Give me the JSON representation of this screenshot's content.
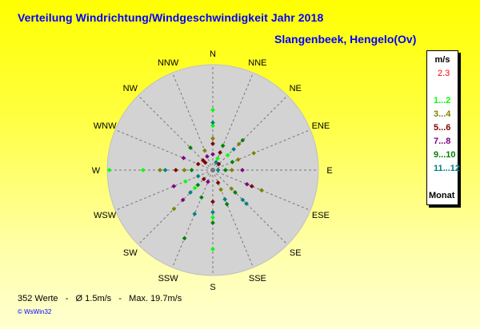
{
  "header": {
    "title": "Verteilung Windrichtung/Windgeschwindigkeit  Jahr 2018",
    "station": "Slangenbeek, Hengelo(Ov)"
  },
  "legend": {
    "unit": "m/s",
    "calm": {
      "label": "2.3",
      "color": "#ff0000"
    },
    "classes": [
      {
        "label": "1...2",
        "color": "#00ff00"
      },
      {
        "label": "3...4",
        "color": "#808000"
      },
      {
        "label": "5...6",
        "color": "#800000"
      },
      {
        "label": "7...8",
        "color": "#800080"
      },
      {
        "label": "9...10",
        "color": "#008000"
      },
      {
        "label": "11...12",
        "color": "#008080"
      }
    ],
    "footer": "Monat"
  },
  "footer": {
    "stats": "352 Werte   -   Ø 1.5m/s   -   Max. 19.7m/s",
    "credit": "© WsWin32"
  },
  "chart_data": {
    "type": "scatter",
    "subtype": "wind-rose",
    "title": "Verteilung Windrichtung/Windgeschwindigkeit  Jahr 2018",
    "directions": [
      "N",
      "NNE",
      "NE",
      "ENE",
      "E",
      "ESE",
      "SE",
      "SSE",
      "S",
      "SSW",
      "SW",
      "WSW",
      "W",
      "WNW",
      "NW",
      "NNW"
    ],
    "grid": true,
    "calm_percent": 2.3,
    "series": [
      {
        "name": "1...2",
        "color": "#00ff00",
        "points": [
          {
            "dir": "N",
            "r": 0.57
          },
          {
            "dir": "N",
            "r": 0.42
          },
          {
            "dir": "S",
            "r": 0.75
          },
          {
            "dir": "S",
            "r": 0.45
          },
          {
            "dir": "W",
            "r": 0.98
          },
          {
            "dir": "W",
            "r": 0.66
          },
          {
            "dir": "WSW",
            "r": 0.28
          },
          {
            "dir": "SW",
            "r": 0.24
          },
          {
            "dir": "NE",
            "r": 0.2
          },
          {
            "dir": "NNE",
            "r": 0.12
          }
        ]
      },
      {
        "name": "3...4",
        "color": "#808000",
        "points": [
          {
            "dir": "ENE",
            "r": 0.42
          },
          {
            "dir": "ENE",
            "r": 0.26
          },
          {
            "dir": "NE",
            "r": 0.35
          },
          {
            "dir": "E",
            "r": 0.18
          },
          {
            "dir": "N",
            "r": 0.3
          },
          {
            "dir": "W",
            "r": 0.5
          },
          {
            "dir": "W",
            "r": 0.27
          },
          {
            "dir": "SW",
            "r": 0.52
          },
          {
            "dir": "SE",
            "r": 0.25
          },
          {
            "dir": "SSE",
            "r": 0.2
          },
          {
            "dir": "ESE",
            "r": 0.5
          },
          {
            "dir": "NNW",
            "r": 0.2
          }
        ]
      },
      {
        "name": "5...6",
        "color": "#800000",
        "points": [
          {
            "dir": "NW",
            "r": 0.13
          },
          {
            "dir": "NW",
            "r": 0.1
          },
          {
            "dir": "W",
            "r": 0.35
          },
          {
            "dir": "WNW",
            "r": 0.15
          },
          {
            "dir": "N",
            "r": 0.25
          },
          {
            "dir": "ESE",
            "r": 0.4
          },
          {
            "dir": "SSE",
            "r": 0.13
          },
          {
            "dir": "S",
            "r": 0.3
          },
          {
            "dir": "SW",
            "r": 0.12
          },
          {
            "dir": "NE",
            "r": 0.08
          },
          {
            "dir": "NNE",
            "r": 0.18
          }
        ]
      },
      {
        "name": "7...8",
        "color": "#800080",
        "points": [
          {
            "dir": "E",
            "r": 0.28
          },
          {
            "dir": "SW",
            "r": 0.4
          },
          {
            "dir": "WSW",
            "r": 0.4
          },
          {
            "dir": "NNW",
            "r": 0.14
          },
          {
            "dir": "SSW",
            "r": 0.12
          },
          {
            "dir": "N",
            "r": 0.15
          },
          {
            "dir": "WNW",
            "r": 0.3
          },
          {
            "dir": "ESE",
            "r": 0.35
          }
        ]
      },
      {
        "name": "9...10",
        "color": "#008000",
        "points": [
          {
            "dir": "SW",
            "r": 0.2
          },
          {
            "dir": "SE",
            "r": 0.3
          },
          {
            "dir": "ENE",
            "r": 0.2
          },
          {
            "dir": "NE",
            "r": 0.4
          },
          {
            "dir": "E",
            "r": 0.12
          },
          {
            "dir": "W",
            "r": 0.2
          },
          {
            "dir": "SSW",
            "r": 0.28
          },
          {
            "dir": "SSW",
            "r": 0.7
          },
          {
            "dir": "S",
            "r": 0.5
          },
          {
            "dir": "SSE",
            "r": 0.35
          },
          {
            "dir": "NW",
            "r": 0.3
          },
          {
            "dir": "NNE",
            "r": 0.25
          }
        ]
      },
      {
        "name": "11...12",
        "color": "#008080",
        "points": [
          {
            "dir": "WSW",
            "r": 0.15
          },
          {
            "dir": "SSW",
            "r": 0.45
          },
          {
            "dir": "S",
            "r": 0.4
          },
          {
            "dir": "SE",
            "r": 0.4
          },
          {
            "dir": "SE",
            "r": 0.45
          },
          {
            "dir": "W",
            "r": 0.45
          },
          {
            "dir": "NE",
            "r": 0.28
          },
          {
            "dir": "NNE",
            "r": 0.08
          },
          {
            "dir": "N",
            "r": 0.45
          },
          {
            "dir": "SW",
            "r": 0.3
          },
          {
            "dir": "SSE",
            "r": 0.3
          },
          {
            "dir": "E",
            "r": 0.05
          }
        ]
      }
    ]
  }
}
